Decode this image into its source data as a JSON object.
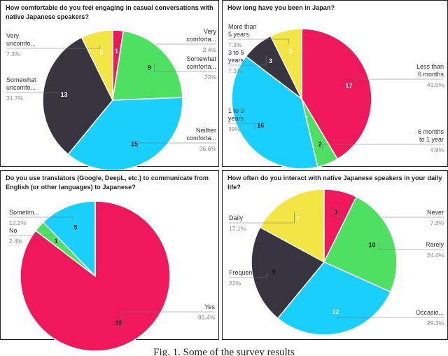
{
  "chart_data": [
    {
      "type": "pie",
      "title": "How comfortable do you feel engaging in casual conversations with native Japanese speakers?",
      "slices": [
        {
          "label": "Very comforta...",
          "value": 1,
          "percent": "2.4%",
          "color": "#f0185c",
          "text_color": "#ffffff"
        },
        {
          "label": "Somewhat comforta...",
          "value": 9,
          "percent": "22%",
          "color": "#4ee161",
          "text_color": "#1a1a1a"
        },
        {
          "label": "Neither comforta...",
          "value": 15,
          "percent": "36.6%",
          "color": "#19cffb",
          "text_color": "#1a1a1a"
        },
        {
          "label": "Somewhat uncomfo...",
          "value": 13,
          "percent": "31.7%",
          "color": "#383440",
          "text_color": "#ffffff"
        },
        {
          "label": "Very uncomfo...",
          "value": 3,
          "percent": "7.3%",
          "color": "#f2e544",
          "text_color": "#ffffff"
        }
      ]
    },
    {
      "type": "pie",
      "title": "How long have you been in Japan?",
      "slices": [
        {
          "label": "Less than 6 months",
          "value": 17,
          "percent": "41.5%",
          "color": "#f0185c",
          "text_color": "#ffffff"
        },
        {
          "label": "6 months to 1 year",
          "value": 2,
          "percent": "4.9%",
          "color": "#4ee161",
          "text_color": "#1a1a1a"
        },
        {
          "label": "1 to 3 years",
          "value": 16,
          "percent": "39%",
          "color": "#19cffb",
          "text_color": "#1a1a1a"
        },
        {
          "label": "3 to 5 years",
          "value": 3,
          "percent": "7.3%",
          "color": "#383440",
          "text_color": "#ffffff"
        },
        {
          "label": "More than 5 years",
          "value": 3,
          "percent": "7.3%",
          "color": "#f2e544",
          "text_color": "#ffffff"
        }
      ]
    },
    {
      "type": "pie",
      "title": "Do you use translators (Google, DeepL, etc.) to communicate from English (or other languages) to Japanese?",
      "slices": [
        {
          "label": "Yes",
          "value": 35,
          "percent": "85.4%",
          "color": "#f0185c",
          "text_color": "#1a1a1a"
        },
        {
          "label": "No",
          "value": 1,
          "percent": "2.4%",
          "color": "#4ee161",
          "text_color": "#1a1a1a"
        },
        {
          "label": "Sometim...",
          "value": 5,
          "percent": "12.2%",
          "color": "#19cffb",
          "text_color": "#1a1a1a"
        }
      ]
    },
    {
      "type": "pie",
      "title": "How often do you interact with native Japanese speakers in your daily life?",
      "slices": [
        {
          "label": "Never",
          "value": 3,
          "percent": "7.3%",
          "color": "#f0185c",
          "text_color": "#1a1a1a"
        },
        {
          "label": "Rarely",
          "value": 10,
          "percent": "24.4%",
          "color": "#4ee161",
          "text_color": "#1a1a1a"
        },
        {
          "label": "Occasio...",
          "value": 12,
          "percent": "29.3%",
          "color": "#19cffb",
          "text_color": "#ffffff"
        },
        {
          "label": "Frequently",
          "value": 9,
          "percent": "22%",
          "color": "#383440",
          "text_color": "#1a1a1a"
        },
        {
          "label": "Daily",
          "value": 7,
          "percent": "17.1%",
          "color": "#f2e544",
          "text_color": "#ffffff"
        }
      ]
    }
  ],
  "caption": "Fig. 1. Some of the survey results"
}
